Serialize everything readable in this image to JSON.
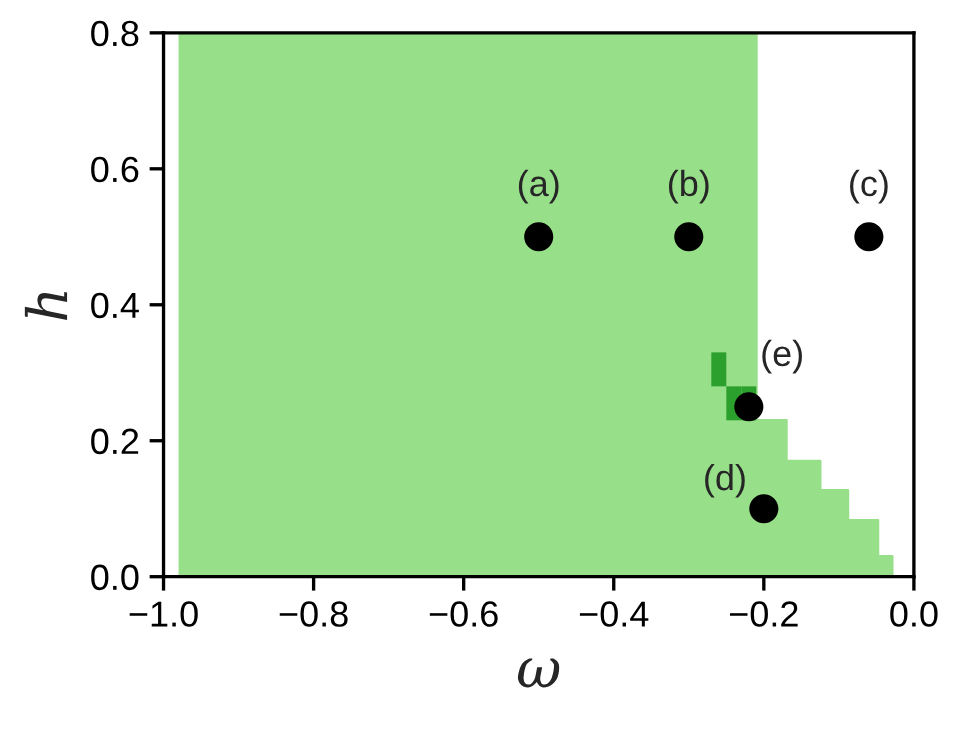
{
  "chart_data": {
    "type": "step",
    "xlabel": "ω",
    "ylabel": "h",
    "xlim": [
      -1.0,
      0.0
    ],
    "ylim": [
      0.0,
      0.8
    ],
    "xticks": [
      {
        "value": -1.0,
        "label": "−1.0"
      },
      {
        "value": -0.8,
        "label": "−0.8"
      },
      {
        "value": -0.6,
        "label": "−0.6"
      },
      {
        "value": -0.4,
        "label": "−0.4"
      },
      {
        "value": -0.2,
        "label": "−0.2"
      },
      {
        "value": 0.0,
        "label": "0.0"
      }
    ],
    "yticks": [
      {
        "value": 0.0,
        "label": "0.0"
      },
      {
        "value": 0.2,
        "label": "0.2"
      },
      {
        "value": 0.4,
        "label": "0.4"
      },
      {
        "value": 0.6,
        "label": "0.6"
      },
      {
        "value": 0.8,
        "label": "0.8"
      }
    ],
    "grid": false,
    "legend": false,
    "series": [
      {
        "color": "#98df8a",
        "x": [
          -0.98,
          -0.21,
          -0.17,
          -0.125,
          -0.088,
          -0.048,
          -0.029
        ],
        "values": [
          0.8,
          0.23,
          0.17,
          0.127,
          0.083,
          0.03,
          0.0
        ]
      },
      {
        "type": "bar",
        "color": "#2ca02c",
        "x": [
          -0.26,
          -0.24,
          -0.22
        ],
        "base": [
          0.28,
          0.23,
          0.23
        ],
        "values": [
          0.05,
          0.05,
          0.05
        ]
      },
      {
        "type": "scatter",
        "color": "#000000",
        "marker": "circle",
        "x": [
          -0.5,
          -0.3,
          -0.06,
          -0.2,
          -0.22
        ],
        "values": [
          0.5,
          0.5,
          0.5,
          0.1,
          0.25
        ]
      }
    ],
    "annotations": [
      {
        "text": "(a)",
        "x": -0.5,
        "y": 0.5
      },
      {
        "text": "(b)",
        "x": -0.3,
        "y": 0.5
      },
      {
        "text": "(c)",
        "x": -0.06,
        "y": 0.5
      },
      {
        "text": "(d)",
        "x": -0.2,
        "y": 0.1
      },
      {
        "text": "(e)",
        "x": -0.22,
        "y": 0.25
      }
    ]
  }
}
